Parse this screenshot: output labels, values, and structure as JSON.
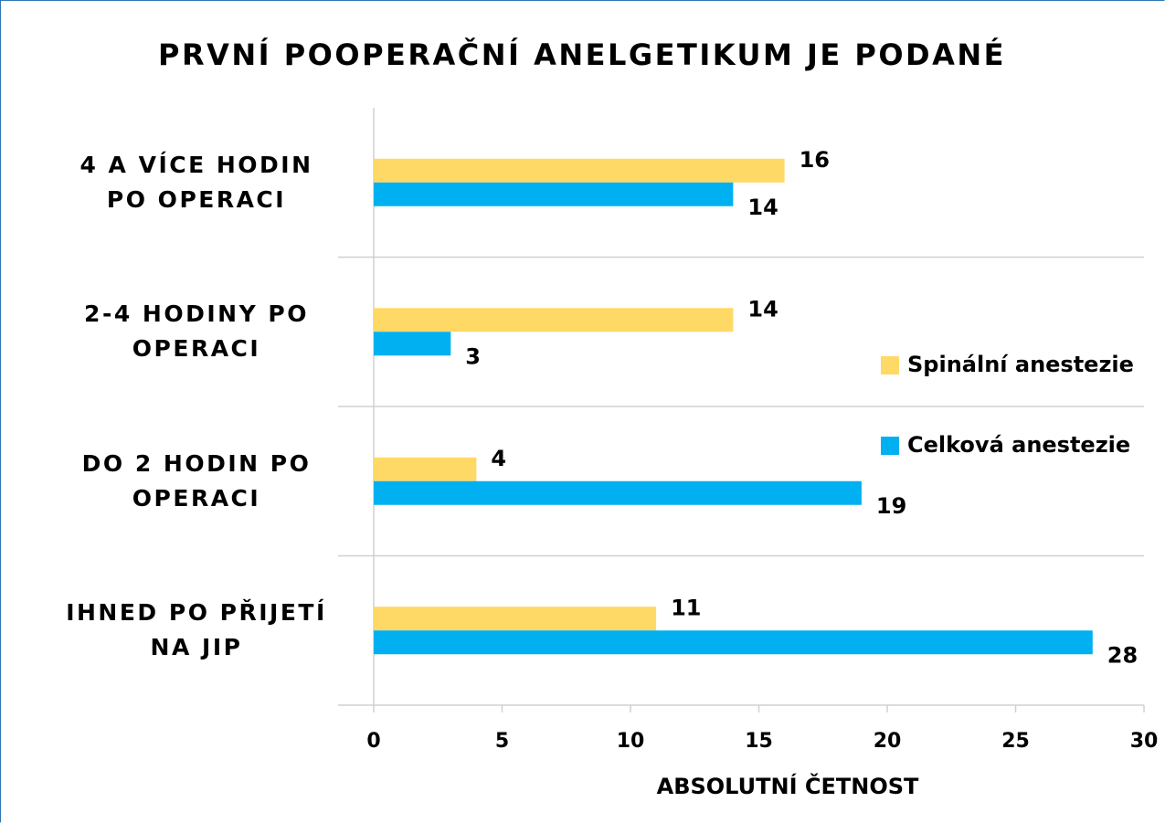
{
  "chart_data": {
    "type": "barh",
    "title": "PRVNÍ POOPERAČNÍ ANELGETIKUM JE PODANÉ",
    "xlabel": "ABSOLUTNÍ ČETNOST",
    "categories": [
      "4 A VÍCE HODIN PO OPERACI",
      "2-4 HODINY PO OPERACI",
      "DO 2 HODIN PO OPERACI",
      "IHNED PO PŘIJETÍ NA JIP"
    ],
    "series": [
      {
        "name": "Spinální anestezie",
        "color": "#ffd966",
        "values": [
          16,
          14,
          4,
          11
        ]
      },
      {
        "name": "Celková anestezie",
        "color": "#00b0f0",
        "values": [
          14,
          3,
          19,
          28
        ]
      }
    ],
    "xlim": [
      0,
      30
    ],
    "xticks": [
      0,
      5,
      10,
      15,
      20,
      25,
      30
    ],
    "legend": "right"
  }
}
